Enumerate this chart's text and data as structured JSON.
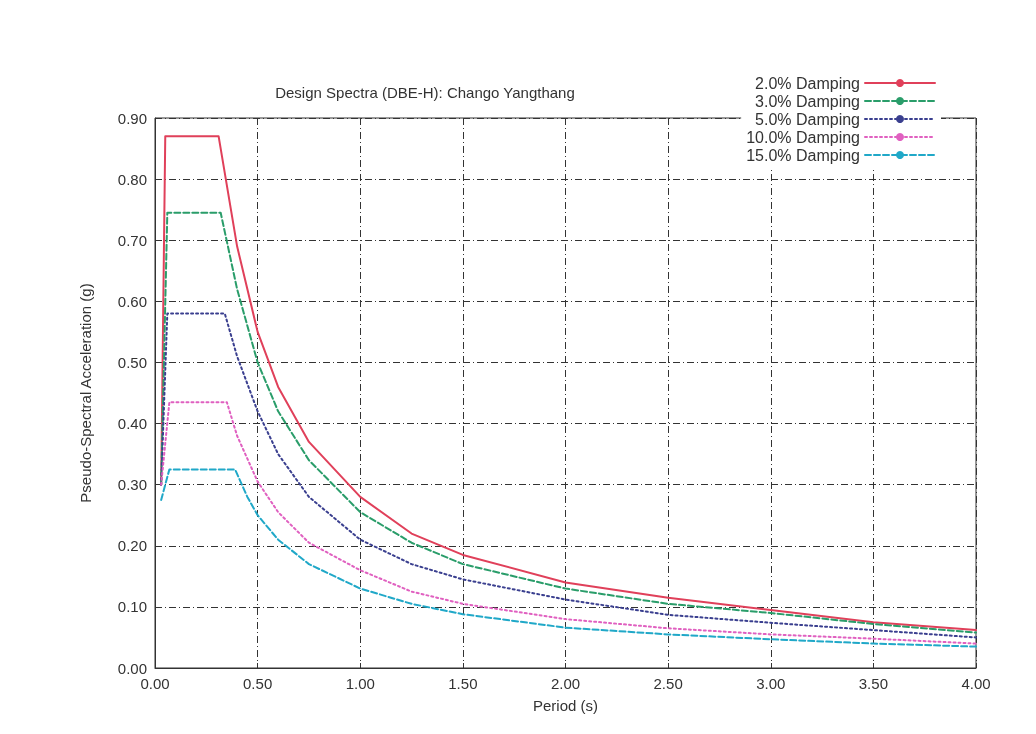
{
  "chart_data": {
    "type": "line",
    "title": "Design Spectra (DBE-H): Chango Yangthang",
    "xlabel": "Period (s)",
    "ylabel": "Pseudo-Spectral Acceleration (g)",
    "xlim": [
      0,
      4
    ],
    "ylim": [
      0,
      0.9
    ],
    "xticks": [
      {
        "value": 0,
        "label": "0.00"
      },
      {
        "value": 0.5,
        "label": "0.50"
      },
      {
        "value": 1,
        "label": "1.00"
      },
      {
        "value": 1.5,
        "label": "1.50"
      },
      {
        "value": 2,
        "label": "2.00"
      },
      {
        "value": 2.5,
        "label": "2.50"
      },
      {
        "value": 3,
        "label": "3.00"
      },
      {
        "value": 3.5,
        "label": "3.50"
      },
      {
        "value": 4,
        "label": "4.00"
      }
    ],
    "yticks": [
      {
        "value": 0,
        "label": "0.00"
      },
      {
        "value": 0.1,
        "label": "0.10"
      },
      {
        "value": 0.2,
        "label": "0.20"
      },
      {
        "value": 0.3,
        "label": "0.30"
      },
      {
        "value": 0.4,
        "label": "0.40"
      },
      {
        "value": 0.5,
        "label": "0.50"
      },
      {
        "value": 0.6,
        "label": "0.60"
      },
      {
        "value": 0.7,
        "label": "0.70"
      },
      {
        "value": 0.8,
        "label": "0.80"
      },
      {
        "value": 0.9,
        "label": "0.90"
      }
    ],
    "grid": true,
    "legend": "top right",
    "marker": "none",
    "series": [
      {
        "name": "2.0% Damping",
        "color": "#e0405a",
        "line_style": "solid",
        "x": [
          0.03,
          0.05,
          0.31,
          0.4,
          0.5,
          0.6,
          0.75,
          1.0,
          1.25,
          1.5,
          2.0,
          2.5,
          3.0,
          3.5,
          4.0
        ],
        "values": [
          0.3,
          0.87,
          0.87,
          0.69,
          0.55,
          0.46,
          0.37,
          0.28,
          0.22,
          0.185,
          0.14,
          0.115,
          0.095,
          0.075,
          0.062
        ]
      },
      {
        "name": "3.0% Damping",
        "color": "#2a9d6a",
        "line_style": "dashed",
        "x": [
          0.03,
          0.06,
          0.32,
          0.4,
          0.5,
          0.6,
          0.75,
          1.0,
          1.25,
          1.5,
          2.0,
          2.5,
          3.0,
          3.5,
          4.0
        ],
        "values": [
          0.3,
          0.745,
          0.745,
          0.62,
          0.5,
          0.42,
          0.34,
          0.255,
          0.205,
          0.17,
          0.13,
          0.105,
          0.09,
          0.072,
          0.058
        ]
      },
      {
        "name": "5.0% Damping",
        "color": "#3a3f8f",
        "line_style": "dotted",
        "x": [
          0.03,
          0.06,
          0.34,
          0.4,
          0.5,
          0.6,
          0.75,
          1.0,
          1.25,
          1.5,
          2.0,
          2.5,
          3.0,
          3.5,
          4.0
        ],
        "values": [
          0.3,
          0.58,
          0.58,
          0.51,
          0.42,
          0.35,
          0.28,
          0.21,
          0.17,
          0.145,
          0.112,
          0.087,
          0.074,
          0.062,
          0.05
        ]
      },
      {
        "name": "10.0% Damping",
        "color": "#e060c0",
        "line_style": "dotted",
        "x": [
          0.03,
          0.07,
          0.35,
          0.4,
          0.5,
          0.6,
          0.75,
          1.0,
          1.25,
          1.5,
          2.0,
          2.5,
          3.0,
          3.5,
          4.0
        ],
        "values": [
          0.3,
          0.435,
          0.435,
          0.38,
          0.305,
          0.255,
          0.205,
          0.16,
          0.125,
          0.105,
          0.08,
          0.065,
          0.055,
          0.048,
          0.04
        ]
      },
      {
        "name": "15.0% Damping",
        "color": "#20a8c8",
        "line_style": "dashed",
        "x": [
          0.03,
          0.07,
          0.39,
          0.45,
          0.5,
          0.6,
          0.75,
          1.0,
          1.25,
          1.5,
          2.0,
          2.5,
          3.0,
          3.5,
          4.0
        ],
        "values": [
          0.275,
          0.325,
          0.325,
          0.28,
          0.25,
          0.21,
          0.17,
          0.13,
          0.105,
          0.088,
          0.066,
          0.055,
          0.047,
          0.04,
          0.035
        ]
      }
    ]
  }
}
